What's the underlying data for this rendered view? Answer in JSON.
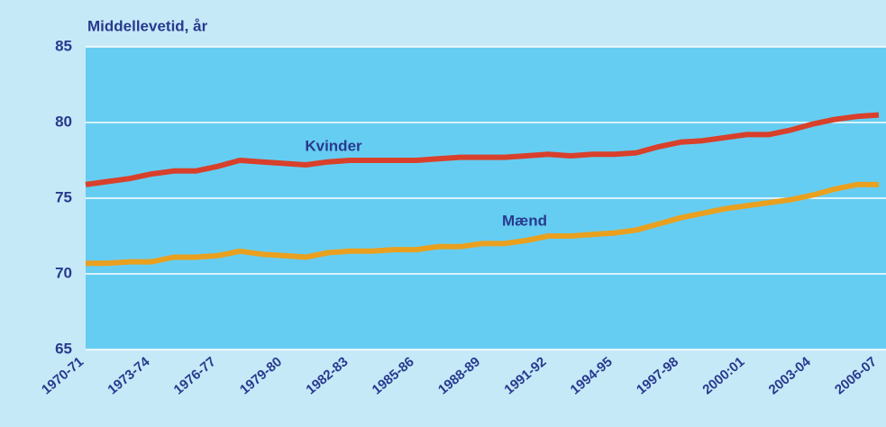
{
  "chart_data": {
    "type": "line",
    "y_label": "Middellevetid, år",
    "categories": [
      "1970-71",
      null,
      null,
      "1973-74",
      null,
      null,
      "1976-77",
      null,
      null,
      "1979-80",
      null,
      null,
      "1982-83",
      null,
      null,
      "1985-86",
      null,
      null,
      "1988-89",
      null,
      null,
      "1991-92",
      null,
      null,
      "1994-95",
      null,
      null,
      "1997-98",
      null,
      null,
      "2000:01",
      null,
      null,
      "2003-04",
      null,
      null,
      "2006-07"
    ],
    "series": [
      {
        "name": "Kvinder",
        "color": "#d8402b",
        "values": [
          75.9,
          76.1,
          76.3,
          76.6,
          76.8,
          76.8,
          77.1,
          77.5,
          77.4,
          77.3,
          77.2,
          77.4,
          77.5,
          77.5,
          77.5,
          77.5,
          77.6,
          77.7,
          77.7,
          77.7,
          77.8,
          77.9,
          77.8,
          77.9,
          77.9,
          78.0,
          78.4,
          78.7,
          78.8,
          79.0,
          79.2,
          79.2,
          79.5,
          79.9,
          80.2,
          80.4,
          80.5
        ]
      },
      {
        "name": "Mænd",
        "color": "#e9a01f",
        "values": [
          70.7,
          70.7,
          70.8,
          70.8,
          71.1,
          71.1,
          71.2,
          71.5,
          71.3,
          71.2,
          71.1,
          71.4,
          71.5,
          71.5,
          71.6,
          71.6,
          71.8,
          71.8,
          72.0,
          72.0,
          72.2,
          72.5,
          72.5,
          72.6,
          72.7,
          72.9,
          73.3,
          73.7,
          74.0,
          74.3,
          74.5,
          74.7,
          74.9,
          75.2,
          75.6,
          75.9,
          75.9
        ]
      }
    ],
    "ylim": [
      65,
      85
    ],
    "yticks": [
      65,
      70,
      75,
      80,
      85
    ],
    "grid": true
  }
}
